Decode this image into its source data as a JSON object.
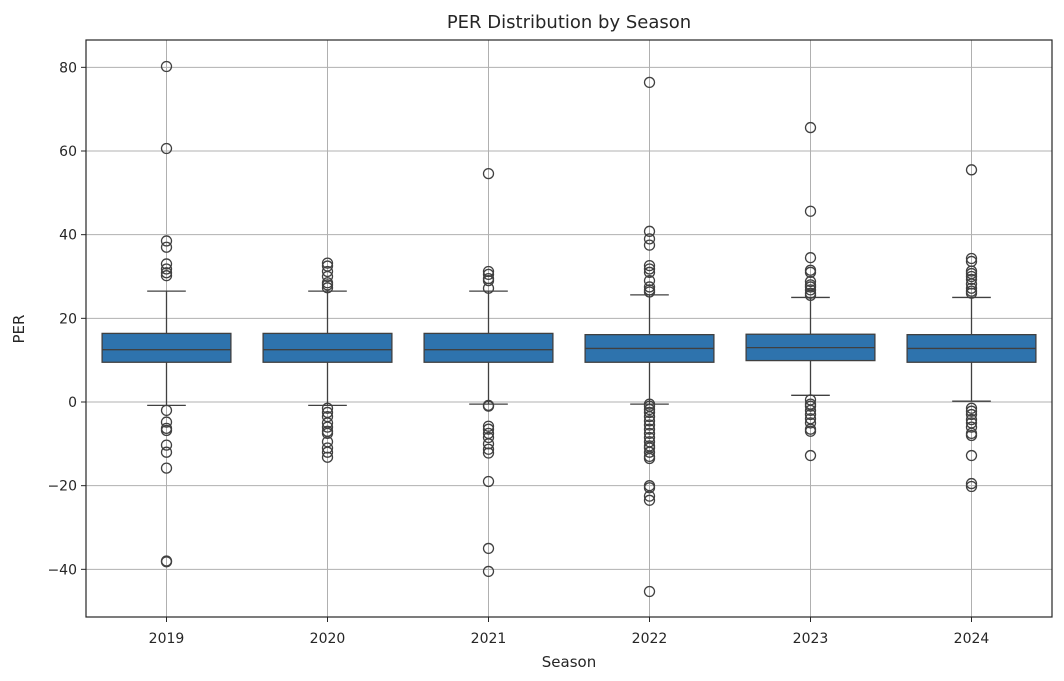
{
  "chart_data": {
    "type": "box",
    "title": "PER Distribution by Season",
    "xlabel": "Season",
    "ylabel": "PER",
    "ylim": [
      -52,
      86
    ],
    "yticks": [
      -40,
      -20,
      0,
      20,
      40,
      60,
      80
    ],
    "ytick_labels": [
      "−40",
      "−20",
      "0",
      "20",
      "40",
      "60",
      "80"
    ],
    "grid": true,
    "box_color": "#2e73ad",
    "categories": [
      "2019",
      "2020",
      "2021",
      "2022",
      "2023",
      "2024"
    ],
    "boxes": [
      {
        "season": "2019",
        "q1": 9.5,
        "median": 12.5,
        "q3": 16.4,
        "whisker_low": -0.8,
        "whisker_high": 26.5,
        "outliers": [
          80.2,
          60.6,
          38.5,
          37.0,
          33.0,
          31.8,
          30.9,
          30.2,
          -2.0,
          -4.8,
          -6.3,
          -6.8,
          -10.3,
          -12.0,
          -15.8,
          -38.0,
          -38.2
        ]
      },
      {
        "season": "2020",
        "q1": 9.5,
        "median": 12.5,
        "q3": 16.4,
        "whisker_low": -0.8,
        "whisker_high": 26.5,
        "outliers": [
          33.2,
          32.5,
          31.2,
          30.0,
          28.5,
          28.0,
          27.3,
          -1.5,
          -2.5,
          -3.5,
          -5.0,
          -6.0,
          -7.0,
          -7.5,
          -9.5,
          -11.0,
          -12.0,
          -13.2
        ]
      },
      {
        "season": "2021",
        "q1": 9.5,
        "median": 12.5,
        "q3": 16.4,
        "whisker_low": -0.5,
        "whisker_high": 26.5,
        "outliers": [
          54.6,
          31.2,
          30.5,
          29.5,
          29.0,
          27.2,
          -0.8,
          -1.0,
          -5.8,
          -6.5,
          -7.5,
          -8.5,
          -10.0,
          -11.3,
          -12.2,
          -19.0,
          -35.0,
          -40.5
        ]
      },
      {
        "season": "2022",
        "q1": 9.5,
        "median": 12.8,
        "q3": 16.1,
        "whisker_low": -0.5,
        "whisker_high": 25.6,
        "outliers": [
          76.4,
          40.8,
          39.0,
          37.5,
          32.6,
          31.8,
          31.0,
          29.0,
          27.5,
          26.8,
          26.3,
          -0.5,
          -1.0,
          -1.8,
          -2.5,
          -3.5,
          -4.5,
          -5.5,
          -6.5,
          -7.5,
          -8.5,
          -9.5,
          -10.5,
          -11.0,
          -12.0,
          -13.0,
          -13.5,
          -20.0,
          -20.5,
          -22.5,
          -23.5,
          -45.3
        ]
      },
      {
        "season": "2023",
        "q1": 9.9,
        "median": 13.0,
        "q3": 16.2,
        "whisker_low": 1.6,
        "whisker_high": 25.0,
        "outliers": [
          65.6,
          45.6,
          34.5,
          31.5,
          31.0,
          28.8,
          28.0,
          27.5,
          26.8,
          26.0,
          25.5,
          0.5,
          -0.5,
          -1.0,
          -2.0,
          -3.0,
          -4.0,
          -5.0,
          -6.5,
          -7.0,
          -12.8
        ]
      },
      {
        "season": "2024",
        "q1": 9.5,
        "median": 12.8,
        "q3": 16.1,
        "whisker_low": 0.2,
        "whisker_high": 25.0,
        "outliers": [
          55.5,
          34.3,
          33.6,
          31.3,
          30.7,
          30.0,
          29.3,
          28.2,
          27.2,
          26.5,
          26.0,
          -1.5,
          -2.2,
          -3.0,
          -4.2,
          -5.0,
          -6.0,
          -7.5,
          -8.0,
          -12.8,
          -19.5,
          -20.2
        ]
      }
    ]
  }
}
